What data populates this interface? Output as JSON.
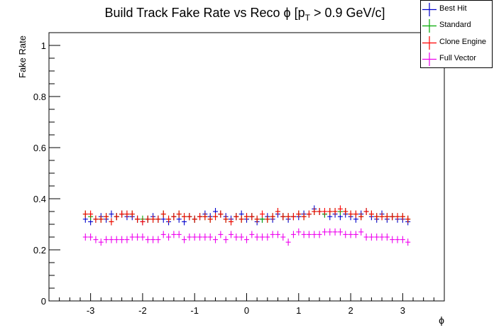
{
  "chart_data": {
    "type": "scatter",
    "title": "Build Track Fake Rate vs Reco ϕ [p_T > 0.9 GeV/c]",
    "title_parts": {
      "pre": "Build Track Fake Rate vs Reco ϕ [p",
      "sub": "T",
      "post": " > 0.9 GeV/c]"
    },
    "xlabel": "ϕ",
    "ylabel": "Fake Rate",
    "xlim": [
      -3.8,
      3.8
    ],
    "ylim": [
      0,
      1.05
    ],
    "xticks": [
      -3,
      -2,
      -1,
      0,
      1,
      2,
      3
    ],
    "xtick_labels": [
      "-3",
      "-2",
      "-1",
      "0",
      "1",
      "2",
      "3"
    ],
    "yticks": [
      0,
      0.2,
      0.4,
      0.6,
      0.8,
      1
    ],
    "ytick_labels": [
      "0",
      "0.2",
      "0.4",
      "0.6",
      "0.8",
      "1"
    ],
    "grid": false,
    "legend_position": "top-right",
    "x": [
      -3.1,
      -3.0,
      -2.9,
      -2.8,
      -2.7,
      -2.6,
      -2.5,
      -2.4,
      -2.3,
      -2.2,
      -2.1,
      -2.0,
      -1.9,
      -1.8,
      -1.7,
      -1.6,
      -1.5,
      -1.4,
      -1.3,
      -1.2,
      -1.1,
      -1.0,
      -0.9,
      -0.8,
      -0.7,
      -0.6,
      -0.5,
      -0.4,
      -0.3,
      -0.2,
      -0.1,
      0.0,
      0.1,
      0.2,
      0.3,
      0.4,
      0.5,
      0.6,
      0.7,
      0.8,
      0.9,
      1.0,
      1.1,
      1.2,
      1.3,
      1.4,
      1.5,
      1.6,
      1.7,
      1.8,
      1.9,
      2.0,
      2.1,
      2.2,
      2.3,
      2.4,
      2.5,
      2.6,
      2.7,
      2.8,
      2.9,
      3.0,
      3.1
    ],
    "series": [
      {
        "name": "Best Hit",
        "color": "#0000cc",
        "values": [
          0.32,
          0.31,
          0.32,
          0.33,
          0.32,
          0.34,
          0.33,
          0.34,
          0.33,
          0.33,
          0.32,
          0.31,
          0.32,
          0.33,
          0.32,
          0.32,
          0.31,
          0.33,
          0.32,
          0.31,
          0.33,
          0.32,
          0.33,
          0.34,
          0.33,
          0.35,
          0.34,
          0.33,
          0.32,
          0.33,
          0.34,
          0.32,
          0.33,
          0.31,
          0.32,
          0.33,
          0.32,
          0.34,
          0.33,
          0.32,
          0.33,
          0.33,
          0.34,
          0.34,
          0.36,
          0.35,
          0.34,
          0.33,
          0.34,
          0.33,
          0.34,
          0.33,
          0.32,
          0.34,
          0.35,
          0.33,
          0.32,
          0.34,
          0.32,
          0.33,
          0.32,
          0.32,
          0.31
        ]
      },
      {
        "name": "Standard",
        "color": "#00aa00",
        "values": [
          0.34,
          0.33,
          0.32,
          0.32,
          0.33,
          0.31,
          0.33,
          0.34,
          0.34,
          0.34,
          0.32,
          0.32,
          0.32,
          0.32,
          0.32,
          0.34,
          0.32,
          0.33,
          0.34,
          0.33,
          0.33,
          0.32,
          0.33,
          0.33,
          0.32,
          0.33,
          0.34,
          0.32,
          0.31,
          0.33,
          0.32,
          0.33,
          0.33,
          0.32,
          0.32,
          0.32,
          0.33,
          0.35,
          0.33,
          0.33,
          0.33,
          0.34,
          0.33,
          0.34,
          0.35,
          0.35,
          0.34,
          0.35,
          0.35,
          0.35,
          0.35,
          0.34,
          0.34,
          0.33,
          0.35,
          0.34,
          0.33,
          0.33,
          0.33,
          0.33,
          0.33,
          0.33,
          0.32
        ]
      },
      {
        "name": "Clone Engine",
        "color": "#ff0000",
        "values": [
          0.34,
          0.34,
          0.32,
          0.32,
          0.33,
          0.31,
          0.33,
          0.34,
          0.34,
          0.34,
          0.32,
          0.31,
          0.32,
          0.32,
          0.32,
          0.34,
          0.32,
          0.33,
          0.34,
          0.33,
          0.33,
          0.32,
          0.33,
          0.33,
          0.32,
          0.33,
          0.34,
          0.32,
          0.31,
          0.33,
          0.32,
          0.33,
          0.33,
          0.32,
          0.34,
          0.32,
          0.33,
          0.35,
          0.33,
          0.33,
          0.33,
          0.34,
          0.33,
          0.34,
          0.35,
          0.35,
          0.35,
          0.35,
          0.35,
          0.36,
          0.35,
          0.34,
          0.34,
          0.33,
          0.35,
          0.34,
          0.33,
          0.33,
          0.33,
          0.33,
          0.33,
          0.33,
          0.32
        ]
      },
      {
        "name": "Full Vector",
        "color": "#ee00ee",
        "values": [
          0.25,
          0.25,
          0.24,
          0.23,
          0.24,
          0.24,
          0.24,
          0.24,
          0.24,
          0.25,
          0.25,
          0.25,
          0.24,
          0.24,
          0.24,
          0.26,
          0.25,
          0.26,
          0.26,
          0.24,
          0.25,
          0.25,
          0.25,
          0.25,
          0.25,
          0.24,
          0.26,
          0.24,
          0.26,
          0.25,
          0.25,
          0.24,
          0.26,
          0.25,
          0.25,
          0.25,
          0.26,
          0.26,
          0.25,
          0.23,
          0.26,
          0.27,
          0.26,
          0.26,
          0.26,
          0.26,
          0.27,
          0.27,
          0.27,
          0.27,
          0.26,
          0.26,
          0.26,
          0.27,
          0.25,
          0.25,
          0.25,
          0.25,
          0.25,
          0.24,
          0.24,
          0.24,
          0.23
        ]
      }
    ]
  }
}
